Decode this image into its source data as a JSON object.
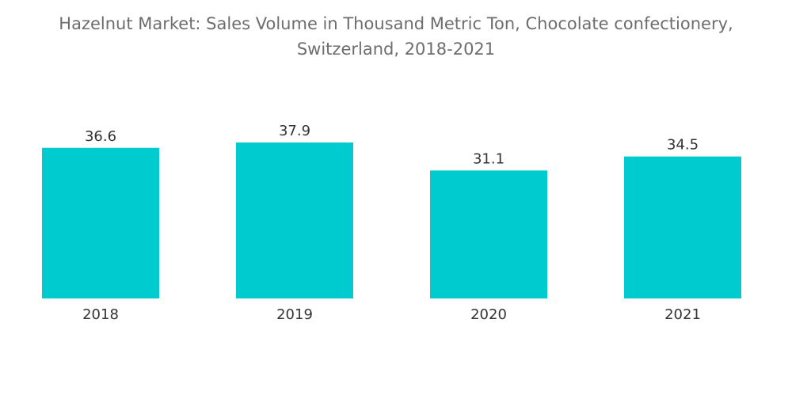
{
  "chart_data": {
    "type": "bar",
    "title": "Hazelnut Market: Sales Volume in Thousand Metric Ton, Chocolate confectionery,\nSwitzerland, 2018-2021",
    "categories": [
      "2018",
      "2019",
      "2020",
      "2021"
    ],
    "values": [
      36.6,
      37.9,
      31.1,
      34.5
    ],
    "value_labels": [
      "36.6",
      "37.9",
      "31.1",
      "34.5"
    ],
    "xlabel": "",
    "ylabel": "",
    "ylim": [
      0,
      37.9
    ],
    "grid": false,
    "legend": "none",
    "bar_color": "#00cccf"
  }
}
